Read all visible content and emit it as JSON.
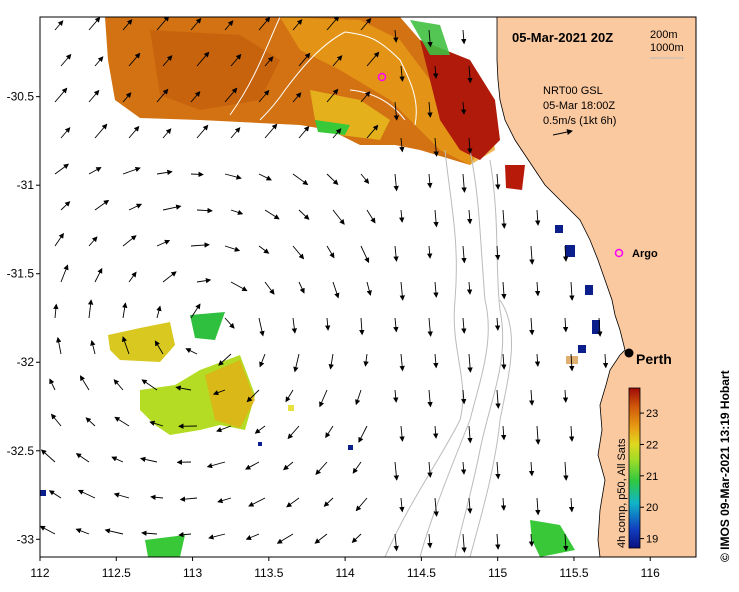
{
  "map": {
    "title": "05-Mar-2021 20Z",
    "contour_legend": [
      "200m",
      "1000m"
    ],
    "current_info": [
      "NRT00 GSL",
      "05-Mar 18:00Z",
      "0.5m/s (1kt 6h)"
    ],
    "place_labels": {
      "argo": "Argo",
      "perth": "Perth"
    },
    "credit": "© IMOS 09-Mar-2021 13:19 Hobart",
    "colorbar": {
      "label": "4h comp, p50, All Sats",
      "ticks": [
        "23",
        "22",
        "21",
        "20",
        "19"
      ],
      "min": 18.7,
      "max": 23.8
    },
    "x_ticks": [
      "112",
      "112.5",
      "113",
      "113.5",
      "114",
      "114.5",
      "115",
      "115.5",
      "116"
    ],
    "y_ticks": [
      "-30.5",
      "-31",
      "-31.5",
      "-32",
      "-32.5",
      "-33"
    ],
    "lon_range": [
      112,
      116.3
    ],
    "lat_range": [
      -33.1,
      -30.05
    ],
    "colors": {
      "land": "#FBC9A0",
      "hot": "#B81A0A",
      "warm": "#E0800F",
      "mid": "#C8D224",
      "cool": "#3CC83C",
      "cold": "#0A1E8C",
      "argo": "#FF00FF"
    }
  }
}
